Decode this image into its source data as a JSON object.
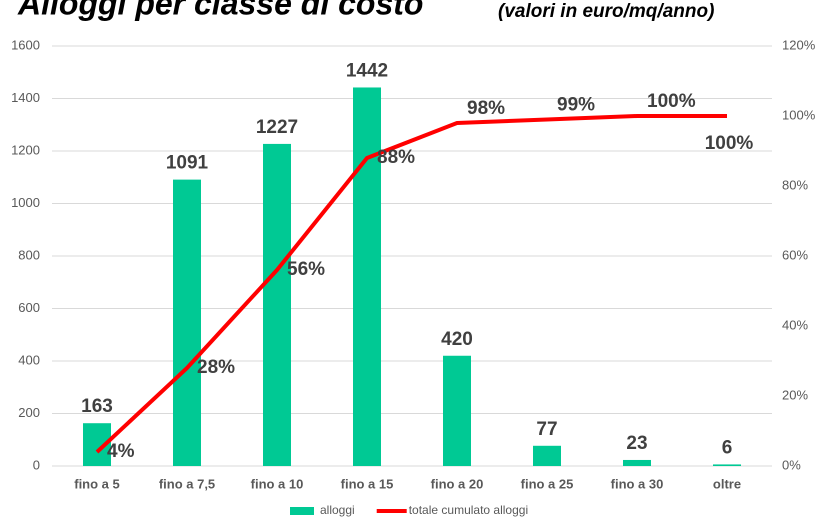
{
  "chart_data": {
    "type": "bar",
    "title": "Alloggi per classe di costo",
    "subtitle": "(valori in euro/mq/anno)",
    "categories": [
      "fino a 5",
      "fino a 7,5",
      "fino a 10",
      "fino a 15",
      "fino a 20",
      "fino a 25",
      "fino a 30",
      "oltre"
    ],
    "series": [
      {
        "name": "alloggi",
        "type": "bar",
        "color": "#00c994",
        "values": [
          163,
          1091,
          1227,
          1442,
          420,
          77,
          23,
          6
        ]
      },
      {
        "name": "totale cumulato alloggi",
        "type": "line",
        "axis": "y2",
        "color": "#ff0000",
        "values": [
          4,
          28,
          56,
          88,
          98,
          99,
          100,
          100
        ],
        "value_labels": [
          "4%",
          "28%",
          "56%",
          "88%",
          "98%",
          "99%",
          "100%",
          "100%"
        ]
      }
    ],
    "ylim": [
      0,
      1600
    ],
    "yticks": [
      0,
      200,
      400,
      600,
      800,
      1000,
      1200,
      1400,
      1600
    ],
    "y2lim": [
      0,
      120
    ],
    "y2ticks": [
      {
        "value": 0,
        "label": "0%"
      },
      {
        "value": 20,
        "label": "20%"
      },
      {
        "value": 40,
        "label": "40%"
      },
      {
        "value": 60,
        "label": "60%"
      },
      {
        "value": 80,
        "label": "80%"
      },
      {
        "value": 100,
        "label": "100%"
      },
      {
        "value": 120,
        "label": "120%"
      }
    ],
    "grid": true,
    "legend": "bottom"
  }
}
